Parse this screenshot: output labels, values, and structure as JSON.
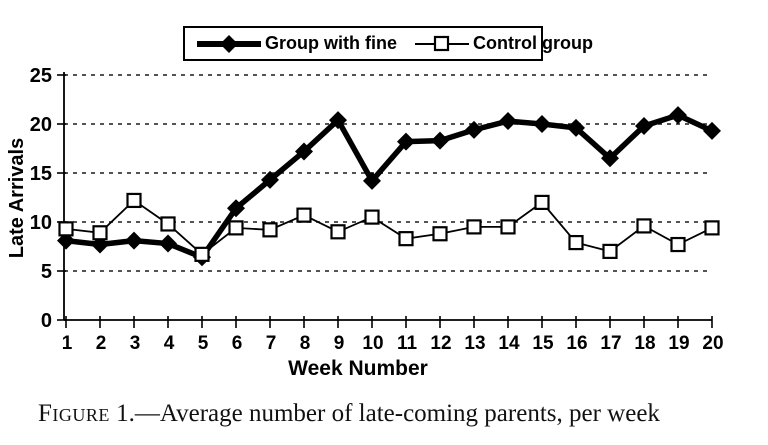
{
  "figure": {
    "caption_prefix": "Figure",
    "caption_rest": " 1.—Average number of late-coming parents, per week"
  },
  "chart_data": {
    "type": "line",
    "title": "",
    "xlabel": "Week Number",
    "ylabel": "Late Arrivals",
    "x": [
      1,
      2,
      3,
      4,
      5,
      6,
      7,
      8,
      9,
      10,
      11,
      12,
      13,
      14,
      15,
      16,
      17,
      18,
      19,
      20
    ],
    "y_ticks": [
      0,
      5,
      10,
      15,
      20,
      25
    ],
    "ylim": [
      0,
      25
    ],
    "grid": "horizontal-dashed",
    "legend_position": "top-center",
    "series": [
      {
        "name": "Group with fine",
        "marker": "filled-diamond",
        "line": "thick",
        "color": "#000000",
        "values": [
          8.1,
          7.7,
          8.1,
          7.8,
          6.4,
          11.4,
          14.3,
          17.2,
          20.4,
          14.2,
          18.2,
          18.3,
          19.4,
          20.3,
          20.0,
          19.6,
          16.5,
          19.8,
          20.9,
          19.3
        ]
      },
      {
        "name": "Control group",
        "marker": "open-square",
        "line": "thin",
        "color": "#000000",
        "values": [
          9.3,
          8.9,
          12.2,
          9.8,
          6.7,
          9.4,
          9.2,
          10.7,
          9.0,
          10.5,
          8.3,
          8.8,
          9.5,
          9.5,
          12.0,
          7.9,
          7.0,
          9.6,
          7.7,
          9.4
        ]
      }
    ]
  },
  "colors": {
    "background": "#ffffff",
    "ink": "#000000"
  }
}
